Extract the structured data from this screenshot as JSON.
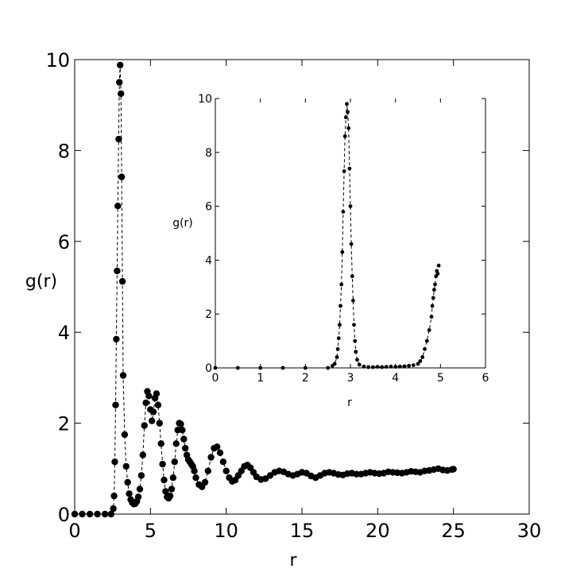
{
  "chart_data": [
    {
      "type": "scatter",
      "title": "",
      "xlabel": "r",
      "ylabel": "g(r)",
      "xlim": [
        0,
        30
      ],
      "ylim": [
        0,
        10
      ],
      "xticks": [
        "0",
        "5",
        "10",
        "15",
        "20",
        "25",
        "30"
      ],
      "yticks": [
        "0",
        "2",
        "4",
        "6",
        "8",
        "10"
      ],
      "marker": "filled-circle",
      "line_style": "dashed",
      "color": "#000000",
      "grid": false,
      "series": [
        {
          "x": [
            0,
            0.5,
            1.0,
            1.5,
            2.0,
            2.4,
            2.55,
            2.6,
            2.65,
            2.7,
            2.75,
            2.8,
            2.85,
            2.9,
            2.95,
            3.0,
            3.05,
            3.1,
            3.15,
            3.2,
            3.3,
            3.4,
            3.5,
            3.6,
            3.7,
            3.8,
            3.9,
            4.0,
            4.1,
            4.2,
            4.3,
            4.4,
            4.5,
            4.6,
            4.7,
            4.8,
            4.9,
            5.0,
            5.1,
            5.2,
            5.3,
            5.4,
            5.5,
            5.6,
            5.7,
            5.8,
            5.9,
            6.0,
            6.1,
            6.2,
            6.3,
            6.4,
            6.5,
            6.6,
            6.7,
            6.8,
            6.9,
            7.0,
            7.1,
            7.2,
            7.3,
            7.4,
            7.5,
            7.6,
            7.7,
            7.8,
            7.9,
            8.0,
            8.2,
            8.4,
            8.6,
            8.8,
            9.0,
            9.2,
            9.4,
            9.6,
            9.8,
            10.0,
            10.2,
            10.4,
            10.6,
            10.8,
            11.0,
            11.2,
            11.4,
            11.6,
            11.8,
            12.0,
            12.3,
            12.6,
            12.9,
            13.2,
            13.5,
            13.8,
            14.1,
            14.4,
            14.7,
            15.0,
            15.3,
            15.6,
            15.9,
            16.2,
            16.5,
            16.8,
            17.1,
            17.4,
            17.7,
            18.0,
            18.3,
            18.6,
            18.9,
            19.2,
            19.5,
            19.8,
            20.1,
            20.4,
            20.7,
            21.0,
            21.3,
            21.6,
            21.9,
            22.2,
            22.5,
            22.8,
            23.1,
            23.4,
            23.7,
            24.0,
            24.3,
            24.6,
            24.9,
            25.0
          ],
          "y": [
            0,
            0,
            0,
            0,
            0,
            0,
            0.12,
            0.4,
            1.15,
            2.4,
            3.85,
            5.35,
            6.78,
            8.25,
            9.5,
            9.88,
            9.25,
            7.42,
            5.12,
            3.05,
            1.75,
            1.05,
            0.7,
            0.45,
            0.32,
            0.25,
            0.22,
            0.23,
            0.28,
            0.38,
            0.55,
            0.85,
            1.3,
            1.95,
            2.45,
            2.7,
            2.6,
            2.3,
            2.05,
            2.25,
            2.55,
            2.65,
            2.4,
            2.0,
            1.55,
            1.1,
            0.75,
            0.5,
            0.38,
            0.35,
            0.4,
            0.55,
            0.8,
            1.15,
            1.55,
            1.85,
            2.0,
            1.98,
            1.85,
            1.65,
            1.45,
            1.3,
            1.2,
            1.15,
            1.1,
            1.05,
            0.95,
            0.8,
            0.65,
            0.6,
            0.7,
            0.95,
            1.25,
            1.45,
            1.48,
            1.35,
            1.15,
            0.95,
            0.8,
            0.72,
            0.75,
            0.85,
            0.95,
            1.05,
            1.08,
            1.02,
            0.92,
            0.82,
            0.76,
            0.78,
            0.85,
            0.92,
            0.95,
            0.93,
            0.88,
            0.85,
            0.88,
            0.92,
            0.9,
            0.84,
            0.8,
            0.85,
            0.9,
            0.92,
            0.9,
            0.87,
            0.86,
            0.89,
            0.9,
            0.88,
            0.88,
            0.9,
            0.92,
            0.9,
            0.89,
            0.9,
            0.93,
            0.92,
            0.91,
            0.9,
            0.92,
            0.94,
            0.93,
            0.92,
            0.95,
            0.96,
            0.98,
            1.0,
            0.97,
            0.96,
            0.98,
            0.99
          ]
        }
      ]
    },
    {
      "type": "scatter",
      "title": "",
      "xlabel": "r",
      "ylabel": "g(r)",
      "xlim": [
        0,
        6
      ],
      "ylim": [
        0,
        10
      ],
      "xticks": [
        "0",
        "1",
        "2",
        "3",
        "4",
        "5",
        "6"
      ],
      "yticks": [
        "0",
        "2",
        "4",
        "6",
        "8",
        "10"
      ],
      "marker": "filled-circle",
      "line_style": "dashed",
      "color": "#000000",
      "grid": false,
      "series": [
        {
          "x": [
            0,
            0.5,
            1.0,
            1.5,
            2.0,
            2.5,
            2.6,
            2.65,
            2.7,
            2.72,
            2.74,
            2.76,
            2.78,
            2.8,
            2.82,
            2.84,
            2.86,
            2.88,
            2.9,
            2.92,
            2.94,
            2.96,
            2.98,
            3.0,
            3.02,
            3.04,
            3.06,
            3.08,
            3.1,
            3.12,
            3.15,
            3.2,
            3.3,
            3.4,
            3.5,
            3.6,
            3.7,
            3.8,
            3.9,
            4.0,
            4.1,
            4.2,
            4.3,
            4.4,
            4.5,
            4.55,
            4.6,
            4.65,
            4.7,
            4.75,
            4.8,
            4.82,
            4.84,
            4.86,
            4.88,
            4.9,
            4.92,
            4.94,
            4.96
          ],
          "y": [
            0,
            0,
            0,
            0,
            0,
            0,
            0.08,
            0.15,
            0.4,
            0.7,
            1.1,
            1.6,
            2.3,
            3.1,
            4.3,
            5.8,
            7.3,
            8.6,
            9.3,
            9.8,
            9.5,
            8.9,
            7.4,
            6.0,
            4.6,
            3.4,
            2.5,
            1.6,
            1.0,
            0.6,
            0.3,
            0.12,
            0.05,
            0.03,
            0.03,
            0.04,
            0.03,
            0.04,
            0.05,
            0.04,
            0.05,
            0.06,
            0.08,
            0.1,
            0.15,
            0.25,
            0.4,
            0.7,
            1.0,
            1.4,
            1.9,
            2.3,
            2.6,
            2.9,
            3.1,
            3.4,
            3.6,
            3.5,
            3.8
          ]
        }
      ]
    }
  ]
}
